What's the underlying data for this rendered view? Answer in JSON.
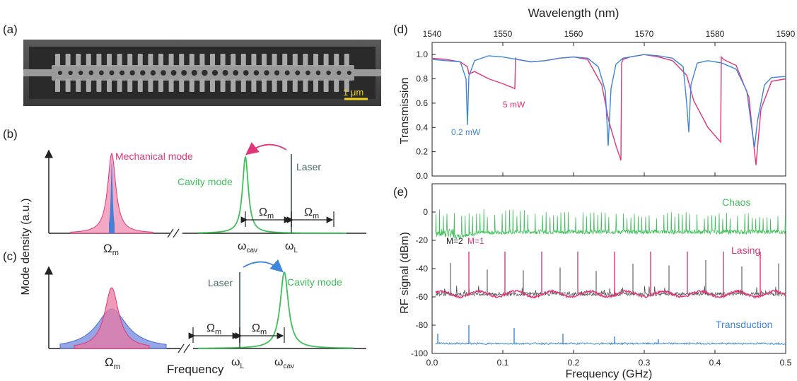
{
  "panel_labels": {
    "a": "(a)",
    "b": "(b)",
    "c": "(c)",
    "d": "(d)",
    "e": "(e)"
  },
  "sem": {
    "scalebar_label": "1 μm"
  },
  "schematic": {
    "ylabel": "Mode density (a.u.)",
    "xlabel": "Frequency",
    "b": {
      "mech_label": "Mechanical mode",
      "cavity_label": "Cavity mode",
      "laser_label": "Laser",
      "omega_m_1": "Ω",
      "omega_m_2": "Ω",
      "omega_m_peak": "Ω",
      "omega_sub_m": "m",
      "omega_cav": "ω",
      "omega_L": "ω",
      "sub_cav": "cav",
      "sub_L": "L"
    },
    "c": {
      "cavity_label": "Cavity mode",
      "laser_label": "Laser",
      "omega_m_1": "Ω",
      "omega_m_2": "Ω",
      "omega_m_peak": "Ω",
      "omega_sub_m": "m",
      "omega_cav": "ω",
      "omega_L": "ω",
      "sub_cav": "cav",
      "sub_L": "L"
    }
  },
  "chart_data": [
    {
      "type": "line",
      "panel": "d",
      "xlabel": "Wavelength (nm)",
      "ylabel": "Transmission",
      "xlim": [
        1540,
        1590
      ],
      "ylim": [
        0.0,
        1.1
      ],
      "xticks": [
        "1540",
        "1550",
        "1560",
        "1570",
        "1580",
        "1590"
      ],
      "yticks": [
        "0.0",
        "0.2",
        "0.4",
        "0.6",
        "0.8",
        "1.0"
      ],
      "annotations": [
        "0.2 mW",
        "5 mW"
      ],
      "series": [
        {
          "name": "0.2 mW",
          "color": "#3d86d9",
          "x": [
            1540,
            1542,
            1544,
            1544.8,
            1545,
            1545.2,
            1546,
            1548,
            1550,
            1552,
            1554,
            1556,
            1558,
            1560,
            1562,
            1563.5,
            1564.5,
            1564.9,
            1565.3,
            1566,
            1567,
            1568,
            1570,
            1572,
            1574,
            1575.5,
            1576,
            1576.3,
            1576.6,
            1577.5,
            1579,
            1581,
            1583,
            1584.5,
            1585.3,
            1585.6,
            1586,
            1587,
            1588,
            1590
          ],
          "y": [
            0.96,
            0.95,
            0.94,
            0.8,
            0.42,
            0.82,
            0.95,
            0.99,
            0.98,
            0.96,
            0.94,
            0.95,
            0.97,
            0.98,
            0.97,
            0.9,
            0.7,
            0.25,
            0.72,
            0.92,
            0.97,
            0.98,
            1.0,
            0.99,
            0.97,
            0.9,
            0.6,
            0.36,
            0.75,
            0.93,
            0.95,
            0.93,
            0.88,
            0.7,
            0.35,
            0.24,
            0.45,
            0.75,
            0.81,
            0.82
          ]
        },
        {
          "name": "5 mW",
          "color": "#e0357a",
          "x": [
            1540,
            1542,
            1544,
            1545,
            1545.2,
            1546,
            1548,
            1550,
            1551.7,
            1551.8,
            1552,
            1554,
            1556,
            1558,
            1560,
            1562,
            1564,
            1565,
            1566,
            1566.7,
            1566.8,
            1567,
            1568,
            1570,
            1572,
            1574,
            1576,
            1577,
            1579,
            1580.8,
            1580.9,
            1581.2,
            1583,
            1584.8,
            1585.5,
            1585.8,
            1586.5,
            1588,
            1590
          ],
          "y": [
            0.97,
            0.96,
            0.94,
            0.9,
            0.84,
            0.86,
            0.8,
            0.76,
            0.72,
            0.97,
            0.96,
            0.94,
            0.95,
            0.97,
            0.98,
            0.96,
            0.75,
            0.45,
            0.25,
            0.13,
            0.93,
            0.96,
            0.98,
            1.0,
            0.98,
            0.95,
            0.83,
            0.62,
            0.4,
            0.28,
            0.98,
            0.96,
            0.91,
            0.65,
            0.25,
            0.09,
            0.55,
            0.78,
            0.8
          ]
        }
      ]
    },
    {
      "type": "line",
      "panel": "e",
      "xlabel": "Frequency (GHz)",
      "ylabel": "RF signal (dBm)",
      "xlim": [
        0.0,
        0.5
      ],
      "ylim": [
        -100,
        20
      ],
      "xticks": [
        "0.0",
        "0.1",
        "0.2",
        "0.3",
        "0.4",
        "0.5"
      ],
      "yticks": [
        "-100",
        "-80",
        "-60",
        "-40",
        "-20",
        "0"
      ],
      "annotations": [
        "Chaos",
        "Lasing",
        "Transduction",
        "M=2",
        "M=1"
      ],
      "series": [
        {
          "name": "Chaos",
          "color": "#3fbf5a",
          "baseline": -10,
          "peak_spacing_ghz": 0.0052,
          "peak_height_db": 15
        },
        {
          "name": "Lasing (M=1)",
          "color": "#e0357a",
          "baseline": -58,
          "peak_frequencies_ghz": [
            0.052,
            0.103,
            0.155,
            0.206,
            0.258,
            0.309,
            0.361,
            0.412,
            0.464
          ],
          "peak_level": -28
        },
        {
          "name": "Lasing (M=2)",
          "color": "#444444",
          "baseline": -58,
          "peak_frequencies_ghz": [
            0.026,
            0.078,
            0.129,
            0.181,
            0.232,
            0.284,
            0.335,
            0.387,
            0.438,
            0.49
          ],
          "peak_level": -38
        },
        {
          "name": "Transduction",
          "color": "#3d86d9",
          "baseline": -93,
          "peak_frequencies_ghz": [
            0.008,
            0.052,
            0.116,
            0.185,
            0.258,
            0.32,
            0.375
          ],
          "peak_levels": [
            -86,
            -80,
            -82,
            -86,
            -88,
            -90,
            -92
          ]
        }
      ]
    }
  ]
}
